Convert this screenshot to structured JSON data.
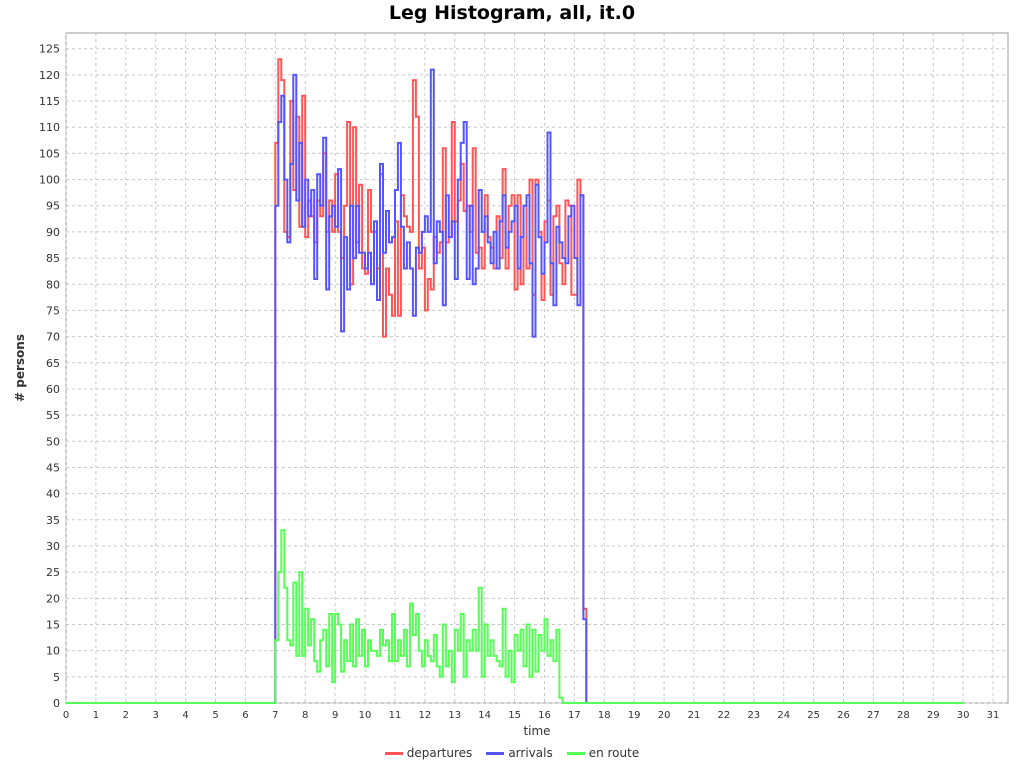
{
  "chart_data": {
    "type": "line",
    "title": "Leg Histogram, all, it.0",
    "xlabel": "time",
    "ylabel": "# persons",
    "xlim": [
      0,
      31.5
    ],
    "ylim": [
      0,
      128
    ],
    "x_ticks": [
      0,
      1,
      2,
      3,
      4,
      5,
      6,
      7,
      8,
      9,
      10,
      11,
      12,
      13,
      14,
      15,
      16,
      17,
      18,
      19,
      20,
      21,
      22,
      23,
      24,
      25,
      26,
      27,
      28,
      29,
      30,
      31
    ],
    "y_ticks": [
      0,
      5,
      10,
      15,
      20,
      25,
      30,
      35,
      40,
      45,
      50,
      55,
      60,
      65,
      70,
      75,
      80,
      85,
      90,
      95,
      100,
      105,
      110,
      115,
      120,
      125
    ],
    "grid": true,
    "legend_position": "bottom",
    "series": [
      {
        "name": "departures",
        "color": "#ff5555",
        "points": [
          [
            0,
            0
          ],
          [
            7,
            0
          ],
          [
            7,
            107
          ],
          [
            7.1,
            123
          ],
          [
            7.2,
            119
          ],
          [
            7.3,
            90
          ],
          [
            7.4,
            89
          ],
          [
            7.5,
            115
          ],
          [
            7.6,
            98
          ],
          [
            7.7,
            112
          ],
          [
            7.8,
            91
          ],
          [
            7.9,
            116
          ],
          [
            8.0,
            89
          ],
          [
            8.1,
            96
          ],
          [
            8.2,
            93
          ],
          [
            8.3,
            88
          ],
          [
            8.4,
            96
          ],
          [
            8.5,
            93
          ],
          [
            8.6,
            105
          ],
          [
            8.7,
            90
          ],
          [
            8.8,
            96
          ],
          [
            8.9,
            90
          ],
          [
            9.0,
            101
          ],
          [
            9.1,
            90
          ],
          [
            9.2,
            85
          ],
          [
            9.3,
            95
          ],
          [
            9.4,
            111
          ],
          [
            9.5,
            80
          ],
          [
            9.6,
            110
          ],
          [
            9.7,
            88
          ],
          [
            9.8,
            99
          ],
          [
            9.9,
            83
          ],
          [
            10.0,
            82
          ],
          [
            10.1,
            98
          ],
          [
            10.2,
            90
          ],
          [
            10.3,
            90
          ],
          [
            10.4,
            83
          ],
          [
            10.5,
            101
          ],
          [
            10.6,
            70
          ],
          [
            10.7,
            83
          ],
          [
            10.8,
            78
          ],
          [
            10.9,
            74
          ],
          [
            11.0,
            92
          ],
          [
            11.1,
            74
          ],
          [
            11.2,
            97
          ],
          [
            11.3,
            93
          ],
          [
            11.4,
            91
          ],
          [
            11.5,
            90
          ],
          [
            11.6,
            119
          ],
          [
            11.7,
            112
          ],
          [
            11.8,
            83
          ],
          [
            11.9,
            87
          ],
          [
            12.0,
            75
          ],
          [
            12.1,
            81
          ],
          [
            12.2,
            79
          ],
          [
            12.3,
            89
          ],
          [
            12.4,
            86
          ],
          [
            12.5,
            88
          ],
          [
            12.6,
            106
          ],
          [
            12.7,
            88
          ],
          [
            12.8,
            89
          ],
          [
            12.9,
            111
          ],
          [
            13.0,
            92
          ],
          [
            13.1,
            96
          ],
          [
            13.2,
            103
          ],
          [
            13.3,
            94
          ],
          [
            13.4,
            95
          ],
          [
            13.5,
            90
          ],
          [
            13.6,
            106
          ],
          [
            13.7,
            86
          ],
          [
            13.8,
            87
          ],
          [
            13.9,
            83
          ],
          [
            14.0,
            97
          ],
          [
            14.1,
            89
          ],
          [
            14.2,
            87
          ],
          [
            14.3,
            83
          ],
          [
            14.4,
            93
          ],
          [
            14.5,
            85
          ],
          [
            14.6,
            102
          ],
          [
            14.7,
            83
          ],
          [
            14.8,
            95
          ],
          [
            14.9,
            97
          ],
          [
            15.0,
            79
          ],
          [
            15.1,
            97
          ],
          [
            15.2,
            80
          ],
          [
            15.3,
            95
          ],
          [
            15.4,
            83
          ],
          [
            15.5,
            100
          ],
          [
            15.6,
            78
          ],
          [
            15.7,
            100
          ],
          [
            15.8,
            90
          ],
          [
            15.9,
            77
          ],
          [
            16.0,
            92
          ],
          [
            16.1,
            96
          ],
          [
            16.2,
            78
          ],
          [
            16.3,
            93
          ],
          [
            16.4,
            95
          ],
          [
            16.5,
            84
          ],
          [
            16.6,
            80
          ],
          [
            16.7,
            96
          ],
          [
            16.8,
            95
          ],
          [
            16.9,
            78
          ],
          [
            17.0,
            78
          ],
          [
            17.1,
            100
          ],
          [
            17.2,
            97
          ],
          [
            17.3,
            18
          ],
          [
            17.4,
            0
          ],
          [
            17.9,
            0
          ],
          [
            18,
            0
          ],
          [
            30,
            0
          ]
        ]
      },
      {
        "name": "arrivals",
        "color": "#5555ff",
        "points": [
          [
            0,
            0
          ],
          [
            7,
            0
          ],
          [
            7,
            95
          ],
          [
            7.1,
            111
          ],
          [
            7.2,
            116
          ],
          [
            7.3,
            100
          ],
          [
            7.4,
            88
          ],
          [
            7.5,
            103
          ],
          [
            7.6,
            120
          ],
          [
            7.7,
            96
          ],
          [
            7.8,
            107
          ],
          [
            7.9,
            91
          ],
          [
            8.0,
            100
          ],
          [
            8.1,
            93
          ],
          [
            8.2,
            98
          ],
          [
            8.3,
            81
          ],
          [
            8.4,
            101
          ],
          [
            8.5,
            95
          ],
          [
            8.6,
            108
          ],
          [
            8.7,
            79
          ],
          [
            8.8,
            93
          ],
          [
            8.9,
            95
          ],
          [
            9.0,
            91
          ],
          [
            9.1,
            102
          ],
          [
            9.2,
            71
          ],
          [
            9.3,
            89
          ],
          [
            9.4,
            79
          ],
          [
            9.5,
            95
          ],
          [
            9.6,
            85
          ],
          [
            9.7,
            95
          ],
          [
            9.8,
            86
          ],
          [
            9.9,
            86
          ],
          [
            10.0,
            83
          ],
          [
            10.1,
            86
          ],
          [
            10.2,
            80
          ],
          [
            10.3,
            92
          ],
          [
            10.4,
            77
          ],
          [
            10.5,
            103
          ],
          [
            10.6,
            86
          ],
          [
            10.7,
            94
          ],
          [
            10.8,
            88
          ],
          [
            10.9,
            89
          ],
          [
            11.0,
            98
          ],
          [
            11.1,
            107
          ],
          [
            11.2,
            91
          ],
          [
            11.3,
            83
          ],
          [
            11.4,
            88
          ],
          [
            11.5,
            83
          ],
          [
            11.6,
            74
          ],
          [
            11.7,
            87
          ],
          [
            11.8,
            86
          ],
          [
            11.9,
            90
          ],
          [
            12.0,
            93
          ],
          [
            12.1,
            90
          ],
          [
            12.2,
            121
          ],
          [
            12.3,
            84
          ],
          [
            12.4,
            92
          ],
          [
            12.5,
            90
          ],
          [
            12.6,
            76
          ],
          [
            12.7,
            97
          ],
          [
            12.8,
            89
          ],
          [
            12.9,
            92
          ],
          [
            13.0,
            81
          ],
          [
            13.1,
            100
          ],
          [
            13.2,
            107
          ],
          [
            13.3,
            111
          ],
          [
            13.4,
            81
          ],
          [
            13.5,
            95
          ],
          [
            13.6,
            80
          ],
          [
            13.7,
            83
          ],
          [
            13.8,
            98
          ],
          [
            13.9,
            90
          ],
          [
            14.0,
            93
          ],
          [
            14.1,
            88
          ],
          [
            14.2,
            84
          ],
          [
            14.3,
            90
          ],
          [
            14.4,
            83
          ],
          [
            14.5,
            92
          ],
          [
            14.6,
            97
          ],
          [
            14.7,
            87
          ],
          [
            14.8,
            90
          ],
          [
            14.9,
            92
          ],
          [
            15.0,
            95
          ],
          [
            15.1,
            83
          ],
          [
            15.2,
            89
          ],
          [
            15.3,
            95
          ],
          [
            15.4,
            97
          ],
          [
            15.5,
            84
          ],
          [
            15.6,
            70
          ],
          [
            15.7,
            99
          ],
          [
            15.8,
            89
          ],
          [
            15.9,
            82
          ],
          [
            16.0,
            88
          ],
          [
            16.1,
            109
          ],
          [
            16.2,
            84
          ],
          [
            16.3,
            76
          ],
          [
            16.4,
            91
          ],
          [
            16.5,
            88
          ],
          [
            16.6,
            85
          ],
          [
            16.7,
            84
          ],
          [
            16.8,
            93
          ],
          [
            16.9,
            95
          ],
          [
            17.0,
            85
          ],
          [
            17.1,
            76
          ],
          [
            17.2,
            97
          ],
          [
            17.3,
            16
          ],
          [
            17.4,
            0
          ],
          [
            17.9,
            0
          ],
          [
            18,
            0
          ],
          [
            30,
            0
          ]
        ]
      },
      {
        "name": "en route",
        "color": "#55ff55",
        "points": [
          [
            0,
            0
          ],
          [
            7,
            0
          ],
          [
            7,
            12
          ],
          [
            7.1,
            25
          ],
          [
            7.2,
            33
          ],
          [
            7.3,
            22
          ],
          [
            7.4,
            12
          ],
          [
            7.5,
            11
          ],
          [
            7.6,
            23
          ],
          [
            7.7,
            9
          ],
          [
            7.8,
            25
          ],
          [
            7.9,
            9
          ],
          [
            8.0,
            18
          ],
          [
            8.1,
            11
          ],
          [
            8.2,
            16
          ],
          [
            8.3,
            8
          ],
          [
            8.4,
            6
          ],
          [
            8.5,
            12
          ],
          [
            8.6,
            14
          ],
          [
            8.7,
            7
          ],
          [
            8.8,
            17
          ],
          [
            8.9,
            4
          ],
          [
            9.0,
            17
          ],
          [
            9.1,
            15
          ],
          [
            9.2,
            6
          ],
          [
            9.3,
            12
          ],
          [
            9.4,
            8
          ],
          [
            9.5,
            15
          ],
          [
            9.6,
            7
          ],
          [
            9.7,
            16
          ],
          [
            9.8,
            9
          ],
          [
            9.9,
            14
          ],
          [
            10.0,
            7
          ],
          [
            10.1,
            12
          ],
          [
            10.2,
            10
          ],
          [
            10.3,
            10
          ],
          [
            10.4,
            9
          ],
          [
            10.5,
            14
          ],
          [
            10.6,
            11
          ],
          [
            10.7,
            12
          ],
          [
            10.8,
            8
          ],
          [
            10.9,
            17
          ],
          [
            11.0,
            8
          ],
          [
            11.1,
            12
          ],
          [
            11.2,
            9
          ],
          [
            11.3,
            14
          ],
          [
            11.4,
            7
          ],
          [
            11.5,
            19
          ],
          [
            11.6,
            13
          ],
          [
            11.7,
            17
          ],
          [
            11.8,
            10
          ],
          [
            11.9,
            7
          ],
          [
            12.0,
            12
          ],
          [
            12.1,
            9
          ],
          [
            12.2,
            8
          ],
          [
            12.3,
            13
          ],
          [
            12.4,
            7
          ],
          [
            12.5,
            5
          ],
          [
            12.6,
            15
          ],
          [
            12.7,
            7
          ],
          [
            12.8,
            10
          ],
          [
            12.9,
            4
          ],
          [
            13.0,
            14
          ],
          [
            13.1,
            10
          ],
          [
            13.2,
            17
          ],
          [
            13.3,
            5
          ],
          [
            13.4,
            12
          ],
          [
            13.5,
            10
          ],
          [
            13.6,
            14
          ],
          [
            13.7,
            10
          ],
          [
            13.8,
            22
          ],
          [
            13.9,
            5
          ],
          [
            14.0,
            15
          ],
          [
            14.1,
            9
          ],
          [
            14.2,
            12
          ],
          [
            14.3,
            9
          ],
          [
            14.4,
            8
          ],
          [
            14.5,
            7
          ],
          [
            14.6,
            18
          ],
          [
            14.7,
            5
          ],
          [
            14.8,
            10
          ],
          [
            14.9,
            4
          ],
          [
            15.0,
            13
          ],
          [
            15.1,
            10
          ],
          [
            15.2,
            14
          ],
          [
            15.3,
            7
          ],
          [
            15.4,
            15
          ],
          [
            15.5,
            5
          ],
          [
            15.6,
            14
          ],
          [
            15.7,
            6
          ],
          [
            15.8,
            13
          ],
          [
            15.9,
            10
          ],
          [
            16.0,
            16
          ],
          [
            16.1,
            9
          ],
          [
            16.2,
            12
          ],
          [
            16.3,
            8
          ],
          [
            16.4,
            14
          ],
          [
            16.5,
            1
          ],
          [
            16.6,
            0
          ],
          [
            17.9,
            0
          ],
          [
            18,
            0
          ],
          [
            30,
            0
          ]
        ]
      }
    ]
  }
}
